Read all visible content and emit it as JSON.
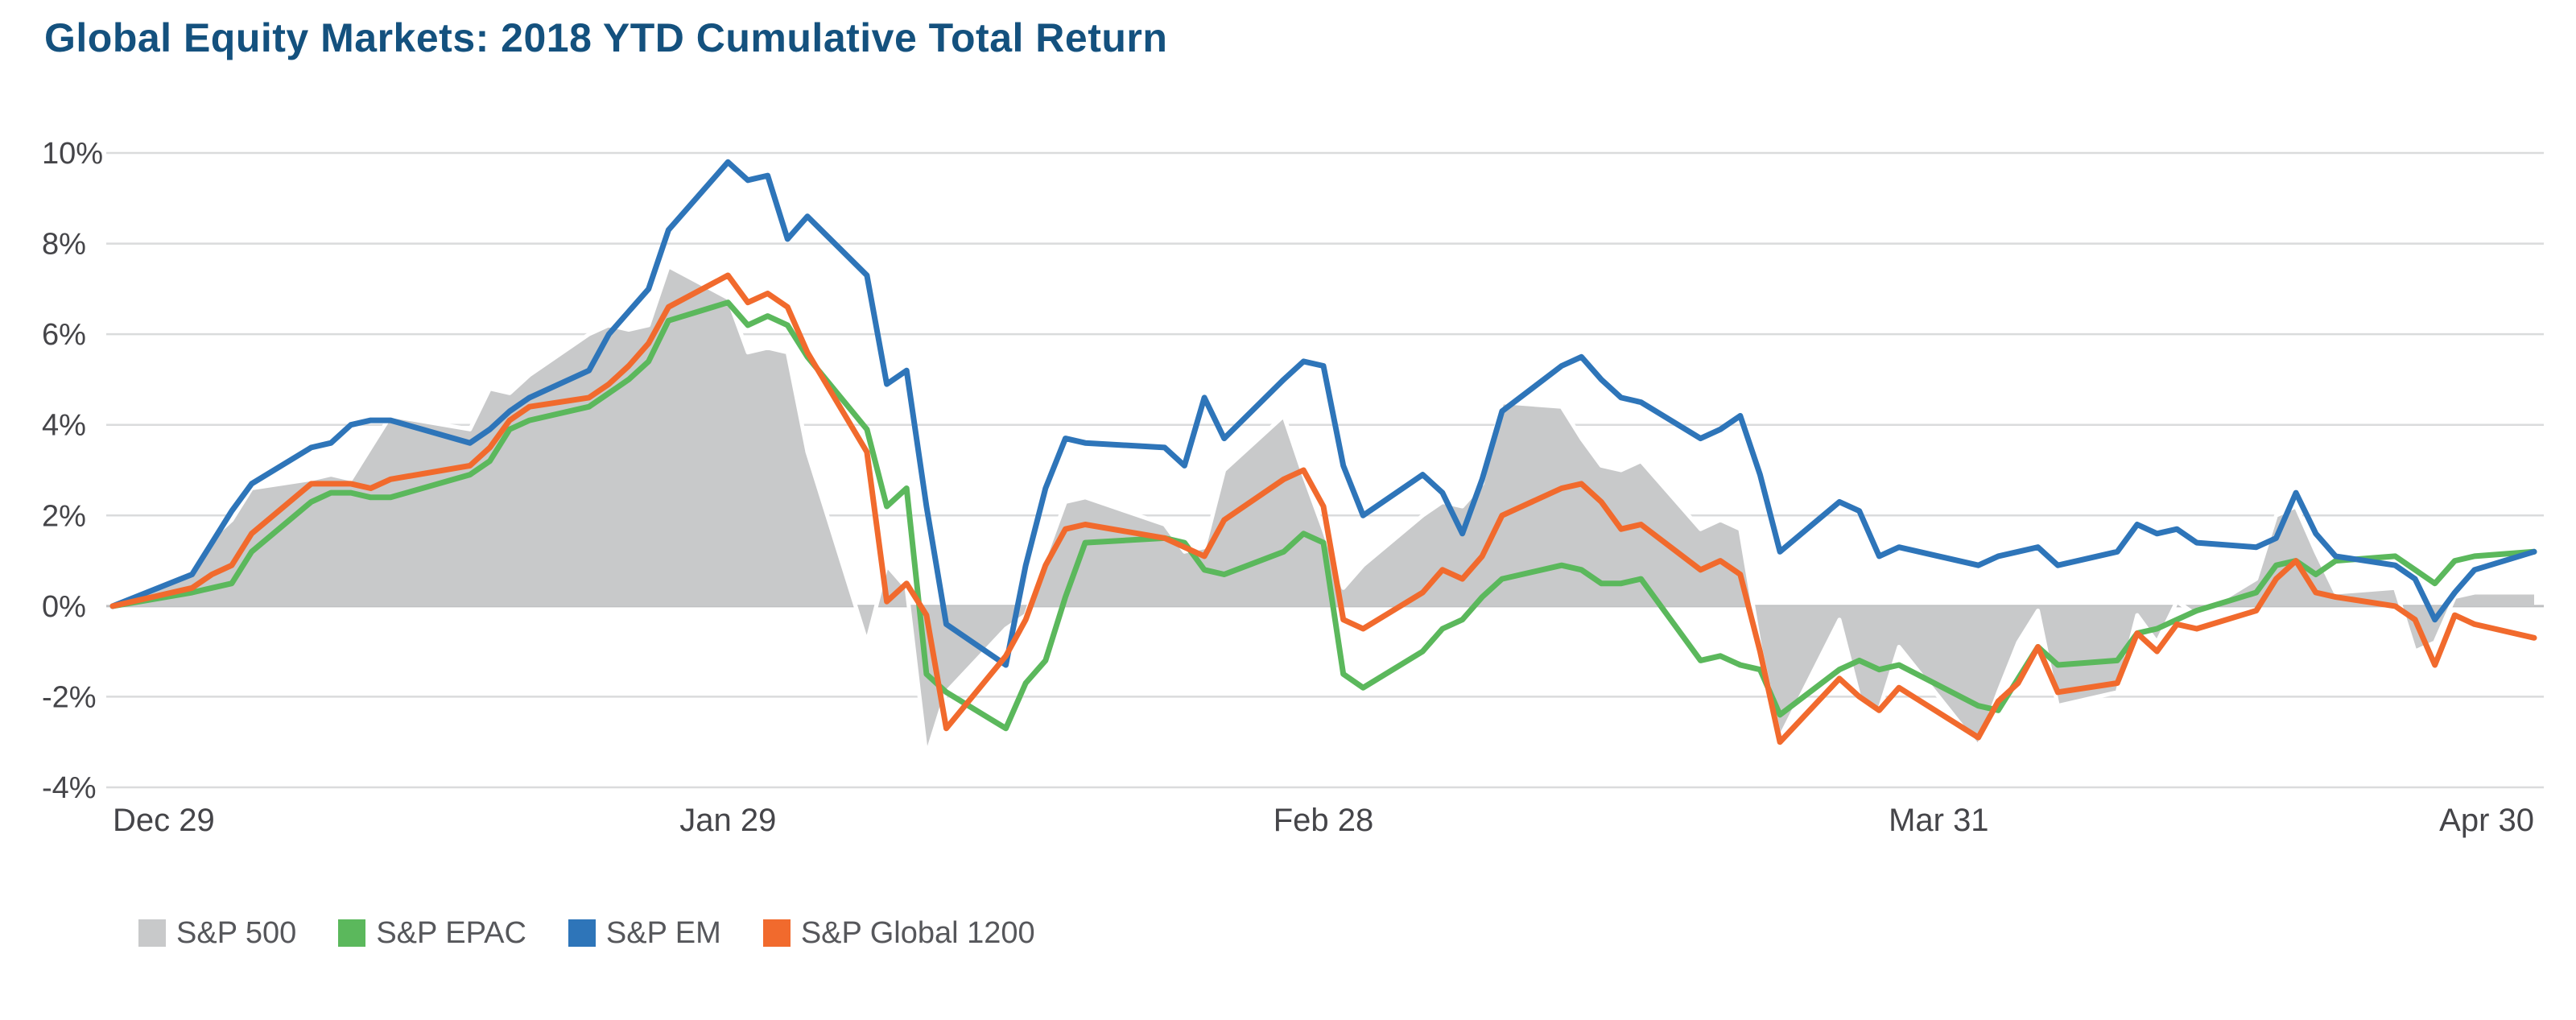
{
  "title": "Global Equity Markets: 2018 YTD Cumulative Total Return",
  "colors": {
    "title": "#14517e",
    "axis_text": "#454549",
    "legend_text": "#56575b",
    "grid": "#dadbdc",
    "zero_line": "#bfc0c2",
    "background": "#ffffff",
    "sp500": "#c8c9ca",
    "epac": "#5bb85c",
    "em": "#2e75b9",
    "global1200": "#f16a2d"
  },
  "legend": [
    {
      "label": "S&P 500",
      "color": "#c8c9ca"
    },
    {
      "label": "S&P EPAC",
      "color": "#5bb85c"
    },
    {
      "label": "S&P EM",
      "color": "#2e75b9"
    },
    {
      "label": "S&P Global 1200",
      "color": "#f16a2d"
    }
  ],
  "chart_data": {
    "type": "line",
    "title": "Global Equity Markets: 2018 YTD Cumulative Total Return",
    "xlabel": "",
    "ylabel": "",
    "ylim": [
      -4,
      10
    ],
    "grid": "horizontal",
    "legend_position": "bottom",
    "yticks": [
      {
        "value": 10,
        "label": "10%"
      },
      {
        "value": 8,
        "label": "8%"
      },
      {
        "value": 6,
        "label": "6%"
      },
      {
        "value": 4,
        "label": "4%"
      },
      {
        "value": 2,
        "label": "2%"
      },
      {
        "value": 0,
        "label": "0%"
      },
      {
        "value": -2,
        "label": "-2%"
      },
      {
        "value": -4,
        "label": "-4%"
      }
    ],
    "xticks": [
      {
        "date": "2017-12-29",
        "label": "Dec 29"
      },
      {
        "date": "2018-01-29",
        "label": "Jan 29"
      },
      {
        "date": "2018-02-28",
        "label": "Feb 28"
      },
      {
        "date": "2018-03-31",
        "label": "Mar 31"
      },
      {
        "date": "2018-04-30",
        "label": "Apr 30"
      }
    ],
    "x_dates": [
      "2017-12-29",
      "2018-01-02",
      "2018-01-03",
      "2018-01-04",
      "2018-01-05",
      "2018-01-08",
      "2018-01-09",
      "2018-01-10",
      "2018-01-11",
      "2018-01-12",
      "2018-01-16",
      "2018-01-17",
      "2018-01-18",
      "2018-01-19",
      "2018-01-22",
      "2018-01-23",
      "2018-01-24",
      "2018-01-25",
      "2018-01-26",
      "2018-01-29",
      "2018-01-30",
      "2018-01-31",
      "2018-02-01",
      "2018-02-02",
      "2018-02-05",
      "2018-02-06",
      "2018-02-07",
      "2018-02-08",
      "2018-02-09",
      "2018-02-12",
      "2018-02-13",
      "2018-02-14",
      "2018-02-15",
      "2018-02-16",
      "2018-02-20",
      "2018-02-21",
      "2018-02-22",
      "2018-02-23",
      "2018-02-26",
      "2018-02-27",
      "2018-02-28",
      "2018-03-01",
      "2018-03-02",
      "2018-03-05",
      "2018-03-06",
      "2018-03-07",
      "2018-03-08",
      "2018-03-09",
      "2018-03-12",
      "2018-03-13",
      "2018-03-14",
      "2018-03-15",
      "2018-03-16",
      "2018-03-19",
      "2018-03-20",
      "2018-03-21",
      "2018-03-22",
      "2018-03-23",
      "2018-03-26",
      "2018-03-27",
      "2018-03-28",
      "2018-03-29",
      "2018-04-02",
      "2018-04-03",
      "2018-04-04",
      "2018-04-05",
      "2018-04-06",
      "2018-04-09",
      "2018-04-10",
      "2018-04-11",
      "2018-04-12",
      "2018-04-13",
      "2018-04-16",
      "2018-04-17",
      "2018-04-18",
      "2018-04-19",
      "2018-04-20",
      "2018-04-23",
      "2018-04-24",
      "2018-04-25",
      "2018-04-26",
      "2018-04-27",
      "2018-04-30"
    ],
    "series": [
      {
        "name": "S&P 500",
        "style": "area",
        "color": "#c8c9ca",
        "values": [
          0,
          0.8,
          1.5,
          1.9,
          2.6,
          2.8,
          2.9,
          2.8,
          3.5,
          4.2,
          3.9,
          4.8,
          4.7,
          5.1,
          6.0,
          6.2,
          6.1,
          6.2,
          7.5,
          6.8,
          5.6,
          5.7,
          5.6,
          3.4,
          -0.8,
          0.9,
          0.4,
          -3.3,
          -1.9,
          -0.5,
          -0.2,
          1.1,
          2.3,
          2.4,
          1.8,
          1.2,
          1.3,
          3.0,
          4.2,
          2.9,
          1.7,
          0.4,
          0.9,
          2.0,
          2.3,
          2.2,
          2.7,
          4.5,
          4.4,
          3.7,
          3.1,
          3.0,
          3.2,
          1.7,
          1.9,
          1.7,
          -0.9,
          -2.9,
          -0.3,
          -2.0,
          -2.3,
          -0.9,
          -3.1,
          -1.9,
          -0.8,
          -0.1,
          -2.2,
          -1.9,
          -0.2,
          -0.8,
          0.1,
          -0.2,
          0.6,
          2.0,
          2.2,
          1.2,
          0.3,
          0.4,
          -1.0,
          -0.8,
          0.2,
          0.3,
          0.3
        ]
      },
      {
        "name": "S&P EPAC",
        "style": "line",
        "color": "#5bb85c",
        "values": [
          0,
          0.3,
          0.4,
          0.5,
          1.2,
          2.3,
          2.5,
          2.5,
          2.4,
          2.4,
          2.9,
          3.2,
          3.9,
          4.1,
          4.4,
          4.7,
          5.0,
          5.4,
          6.3,
          6.7,
          6.2,
          6.4,
          6.2,
          5.5,
          3.9,
          2.2,
          2.6,
          -1.5,
          -1.9,
          -2.7,
          -1.7,
          -1.2,
          0.2,
          1.4,
          1.5,
          1.4,
          0.8,
          0.7,
          1.2,
          1.6,
          1.4,
          -1.5,
          -1.8,
          -1.0,
          -0.5,
          -0.3,
          0.2,
          0.6,
          0.9,
          0.8,
          0.5,
          0.5,
          0.6,
          -1.2,
          -1.1,
          -1.3,
          -1.4,
          -2.4,
          -1.4,
          -1.2,
          -1.4,
          -1.3,
          -2.2,
          -2.3,
          -1.6,
          -0.9,
          -1.3,
          -1.2,
          -0.6,
          -0.5,
          -0.3,
          -0.1,
          0.3,
          0.9,
          1.0,
          0.7,
          1.0,
          1.1,
          0.8,
          0.5,
          1.0,
          1.1,
          1.2
        ]
      },
      {
        "name": "S&P EM",
        "style": "line",
        "color": "#2e75b9",
        "values": [
          0,
          0.7,
          1.4,
          2.1,
          2.7,
          3.5,
          3.6,
          4.0,
          4.1,
          4.1,
          3.6,
          3.9,
          4.3,
          4.6,
          5.2,
          6.0,
          6.5,
          7.0,
          8.3,
          9.8,
          9.4,
          9.5,
          8.1,
          8.6,
          7.3,
          4.9,
          5.2,
          2.2,
          -0.4,
          -1.3,
          0.9,
          2.6,
          3.7,
          3.6,
          3.5,
          3.1,
          4.6,
          3.7,
          5.0,
          5.4,
          5.3,
          3.1,
          2.0,
          2.9,
          2.5,
          1.6,
          2.8,
          4.3,
          5.3,
          5.5,
          5.0,
          4.6,
          4.5,
          3.7,
          3.9,
          4.2,
          2.9,
          1.2,
          2.3,
          2.1,
          1.1,
          1.3,
          0.9,
          1.1,
          1.2,
          1.3,
          0.9,
          1.2,
          1.8,
          1.6,
          1.7,
          1.4,
          1.3,
          1.5,
          2.5,
          1.6,
          1.1,
          0.9,
          0.6,
          -0.3,
          0.3,
          0.8,
          1.2
        ]
      },
      {
        "name": "S&P Global 1200",
        "style": "line",
        "color": "#f16a2d",
        "values": [
          0,
          0.4,
          0.7,
          0.9,
          1.6,
          2.7,
          2.7,
          2.7,
          2.6,
          2.8,
          3.1,
          3.5,
          4.1,
          4.4,
          4.6,
          4.9,
          5.3,
          5.8,
          6.6,
          7.3,
          6.7,
          6.9,
          6.6,
          5.6,
          3.4,
          0.1,
          0.5,
          -0.2,
          -2.7,
          -1.1,
          -0.3,
          0.9,
          1.7,
          1.8,
          1.5,
          1.3,
          1.1,
          1.9,
          2.8,
          3.0,
          2.2,
          -0.3,
          -0.5,
          0.3,
          0.8,
          0.6,
          1.1,
          2.0,
          2.6,
          2.7,
          2.3,
          1.7,
          1.8,
          0.8,
          1.0,
          0.7,
          -1.0,
          -3.0,
          -1.6,
          -2.0,
          -2.3,
          -1.8,
          -2.9,
          -2.1,
          -1.7,
          -0.9,
          -1.9,
          -1.7,
          -0.6,
          -1.0,
          -0.4,
          -0.5,
          -0.1,
          0.6,
          1.0,
          0.3,
          0.2,
          0.0,
          -0.3,
          -1.3,
          -0.2,
          -0.4,
          -0.7
        ]
      }
    ]
  }
}
